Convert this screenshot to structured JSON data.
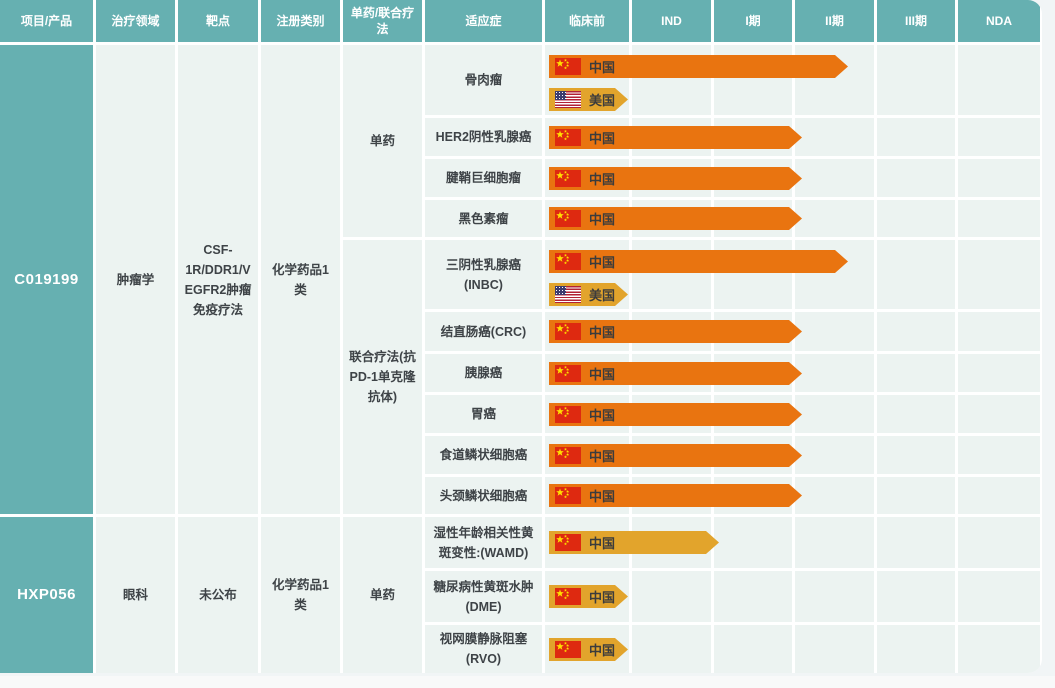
{
  "chart_data": {
    "type": "table",
    "columns": [
      "项目/产品",
      "治疗领域",
      "靶点",
      "注册类别",
      "单药/联合疗法",
      "适应症",
      "临床前",
      "IND",
      "I期",
      "II期",
      "III期",
      "NDA"
    ],
    "stage_order": [
      "临床前",
      "IND",
      "I期",
      "II期",
      "III期",
      "NDA"
    ],
    "colors": {
      "header_bg": "#66b0b1",
      "cell_bg": "#ecf3f1",
      "orange_bar": "#e97410",
      "amber_bar": "#e2a42c",
      "bar_label_text": "#3c3c3c",
      "cell_text": "#3e4347",
      "china_flag_red": "#de2910",
      "china_flag_star": "#ffde00",
      "us_flag_red": "#b22234",
      "us_flag_blue": "#3c3b6e"
    },
    "products": [
      {
        "code": "C019199",
        "area": "肿瘤学",
        "target": "CSF-1R/DDR1/VEGFR2肿瘤免疫疗法",
        "reg_class": "化学药品1类",
        "groups": [
          {
            "therapy": "单药",
            "indications": [
              {
                "name": "骨肉瘤",
                "bars": [
                  {
                    "region": "中国",
                    "flag": "cn",
                    "tone": "orange",
                    "reach": "II期"
                  },
                  {
                    "region": "美国",
                    "flag": "us",
                    "tone": "amber",
                    "reach": "临床前"
                  }
                ]
              },
              {
                "name": "HER2阴性乳腺癌",
                "bars": [
                  {
                    "region": "中国",
                    "flag": "cn",
                    "tone": "orange",
                    "reach": "I期"
                  }
                ]
              },
              {
                "name": "腱鞘巨细胞瘤",
                "bars": [
                  {
                    "region": "中国",
                    "flag": "cn",
                    "tone": "orange",
                    "reach": "I期"
                  }
                ]
              },
              {
                "name": "黑色素瘤",
                "bars": [
                  {
                    "region": "中国",
                    "flag": "cn",
                    "tone": "orange",
                    "reach": "I期"
                  }
                ]
              }
            ]
          },
          {
            "therapy": "联合疗法(抗PD-1单克隆抗体)",
            "indications": [
              {
                "name": "三阴性乳腺癌 (INBC)",
                "bars": [
                  {
                    "region": "中国",
                    "flag": "cn",
                    "tone": "orange",
                    "reach": "II期"
                  },
                  {
                    "region": "美国",
                    "flag": "us",
                    "tone": "amber",
                    "reach": "临床前"
                  }
                ]
              },
              {
                "name": "结直肠癌(CRC)",
                "bars": [
                  {
                    "region": "中国",
                    "flag": "cn",
                    "tone": "orange",
                    "reach": "I期"
                  }
                ]
              },
              {
                "name": "胰腺癌",
                "bars": [
                  {
                    "region": "中国",
                    "flag": "cn",
                    "tone": "orange",
                    "reach": "I期"
                  }
                ]
              },
              {
                "name": "胃癌",
                "bars": [
                  {
                    "region": "中国",
                    "flag": "cn",
                    "tone": "orange",
                    "reach": "I期"
                  }
                ]
              },
              {
                "name": "食道鳞状细胞癌",
                "bars": [
                  {
                    "region": "中国",
                    "flag": "cn",
                    "tone": "orange",
                    "reach": "I期"
                  }
                ]
              },
              {
                "name": "头颈鳞状细胞癌",
                "bars": [
                  {
                    "region": "中国",
                    "flag": "cn",
                    "tone": "orange",
                    "reach": "I期"
                  }
                ]
              }
            ]
          }
        ]
      },
      {
        "code": "HXP056",
        "area": "眼科",
        "target": "未公布",
        "reg_class": "化学药品1类",
        "groups": [
          {
            "therapy": "单药",
            "indications": [
              {
                "name": "湿性年龄相关性黄斑变性:(WAMD)",
                "bars": [
                  {
                    "region": "中国",
                    "flag": "cn",
                    "tone": "amber",
                    "reach": "IND"
                  }
                ]
              },
              {
                "name": "糖尿病性黄斑水肿(DME)",
                "bars": [
                  {
                    "region": "中国",
                    "flag": "cn",
                    "tone": "amber",
                    "reach": "临床前"
                  }
                ]
              },
              {
                "name": "视网膜静脉阻塞(RVO)",
                "bars": [
                  {
                    "region": "中国",
                    "flag": "cn",
                    "tone": "amber",
                    "reach": "临床前"
                  }
                ]
              }
            ]
          }
        ]
      }
    ]
  }
}
